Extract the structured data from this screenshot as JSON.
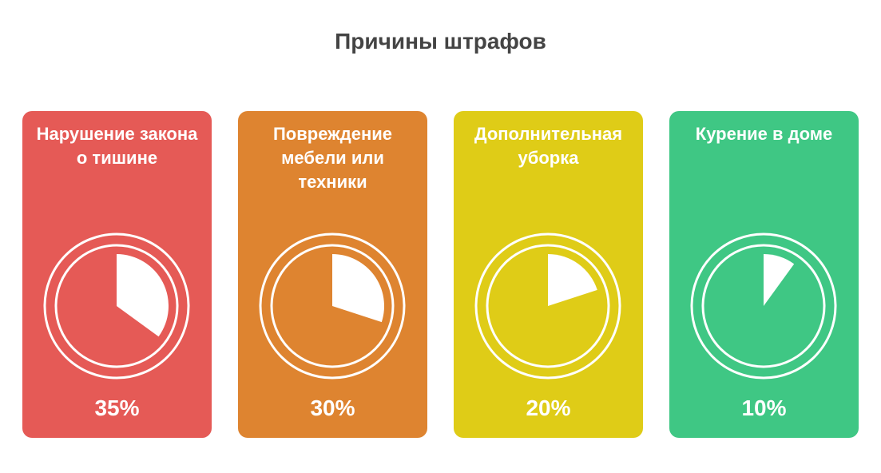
{
  "chart_data": {
    "type": "pie-cards",
    "title": "Причины штрафов",
    "categories": [
      "Нарушение закона о тишине",
      "Повреждение мебели или техники",
      "Дополнительная уборка",
      "Курение в доме"
    ],
    "values": [
      35,
      30,
      20,
      10
    ],
    "value_labels": [
      "35%",
      "30%",
      "20%",
      "10%"
    ],
    "colors": [
      "#e55a56",
      "#de8430",
      "#dfcc17",
      "#3fc784"
    ]
  }
}
